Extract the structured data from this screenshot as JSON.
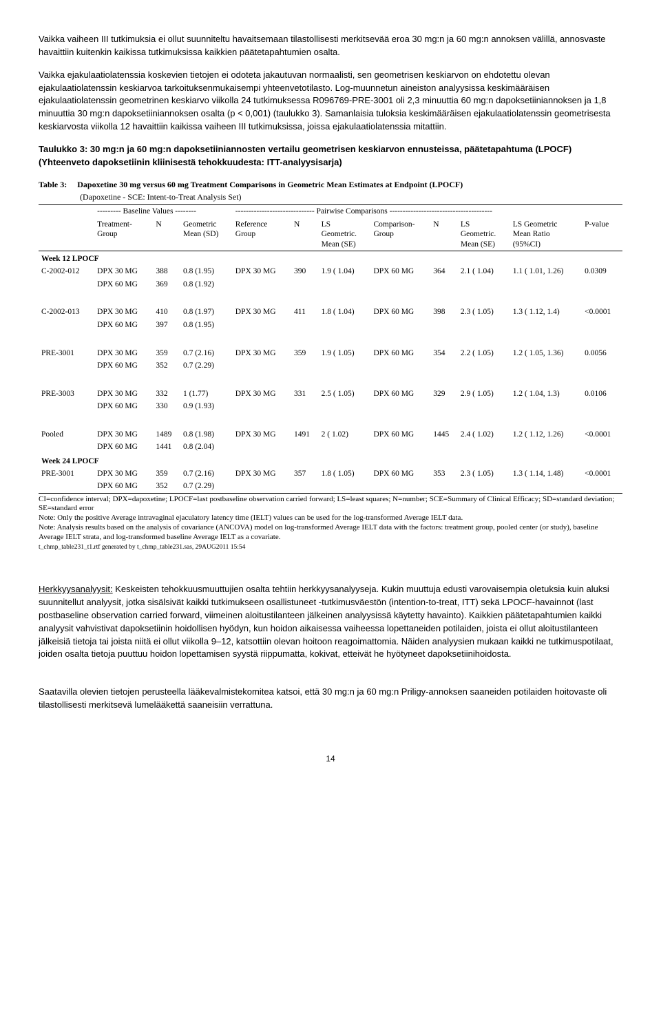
{
  "paragraphs": {
    "p1": "Vaikka vaiheen III tutkimuksia ei ollut suunniteltu havaitsemaan tilastollisesti merkitsevää eroa 30 mg:n ja 60 mg:n annoksen välillä, annosvaste havaittiin kuitenkin kaikissa tutkimuksissa kaikkien päätetapahtumien osalta.",
    "p2": "Vaikka ejakulaatiolatenssia koskevien tietojen ei odoteta jakautuvan normaalisti, sen geometrisen keskiarvon on ehdotettu olevan ejakulaatiolatenssin keskiarvoa tarkoituksenmukaisempi yhteenvetotilasto. Log-muunnetun aineiston analyysissa keskimääräisen ejakulaatiolatenssin geometrinen keskiarvo viikolla 24 tutkimuksessa R096769-PRE-3001 oli 2,3 minuuttia 60 mg:n dapoksetiiniannoksen ja 1,8 minuuttia 30 mg:n dapoksetiiniannoksen osalta (p < 0,001) (taulukko 3). Samanlaisia tuloksia keskimääräisen ejakulaatiolatenssin geometrisesta keskiarvosta viikolla 12 havaittiin kaikissa vaiheen III tutkimuksissa, joissa ejakulaatiolatenssia mitattiin.",
    "heading": "Taulukko 3: 30 mg:n ja 60 mg:n dapoksetiiniannosten vertailu geometrisen keskiarvon ennusteissa, päätetapahtuma (LPOCF) (Yhteenveto dapoksetiinin kliinisestä tehokkuudesta: ITT-analyysisarja)",
    "p3_lead": "Herkkyysanalyysit:",
    "p3_rest": " Keskeisten tehokkuusmuuttujien osalta tehtiin herkkyysanalyyseja. Kukin muuttuja edusti varovaisempia oletuksia kuin aluksi suunnitellut analyysit, jotka sisälsivät kaikki tutkimukseen osallistuneet -tutkimusväestön (intention-to-treat, ITT) sekä LPOCF-havainnot (last postbaseline observation carried forward, viimeinen aloitustilanteen jälkeinen analyysissä käytetty havainto). Kaikkien päätetapahtumien kaikki analyysit vahvistivat dapoksetiinin hoidollisen hyödyn, kun hoidon aikaisessa vaiheessa lopettaneiden potilaiden, joista ei ollut aloitustilanteen jälkeisiä tietoja tai joista niitä ei ollut viikolla 9–12, katsottiin olevan hoitoon reagoimattomia. Näiden analyysien mukaan kaikki ne tutkimuspotilaat, joiden osalta tietoja puuttuu hoidon lopettamisen syystä riippumatta, kokivat, etteivät he hyötyneet dapoksetiinihoidosta.",
    "p4": "Saatavilla olevien tietojen perusteella lääkevalmistekomitea katsoi, että 30 mg:n ja 60 mg:n Priligy-annoksen saaneiden potilaiden hoitovaste oli tilastollisesti merkitsevä lumelääkettä saaneisiin verrattuna.",
    "page_num": "14"
  },
  "table": {
    "title_label": "Table 3:",
    "title_text": "Dapoxetine 30 mg versus 60 mg Treatment Comparisons in Geometric Mean Estimates at Endpoint (LPOCF)",
    "subtitle": "(Dapoxetine - SCE: Intent-to-Treat Analysis Set)",
    "group_header_baseline": "--------- Baseline Values --------",
    "group_header_pairwise": "------------------------------ Pairwise Comparisons ---------------------------------------",
    "columns": {
      "c1": "",
      "c2": "Treatment-\nGroup",
      "c3": "N",
      "c4": "Geometric\nMean (SD)",
      "c5": "Reference\nGroup",
      "c6": "N",
      "c7": "LS\nGeometric.\nMean (SE)",
      "c8": "Comparison-\nGroup",
      "c9": "N",
      "c10": "LS\nGeometric.\nMean (SE)",
      "c11": "LS Geometric\nMean Ratio\n(95%CI)",
      "c12": "P-value"
    },
    "sections": [
      {
        "head": "Week 12 LPOCF",
        "rows": [
          [
            "C-2002-012",
            "DPX 30 MG",
            "388",
            "0.8 (1.95)",
            "DPX 30 MG",
            "390",
            "1.9 ( 1.04)",
            "DPX 60 MG",
            "364",
            "2.1 ( 1.04)",
            "1.1 ( 1.01, 1.26)",
            "0.0309"
          ],
          [
            "",
            "DPX 60 MG",
            "369",
            "0.8 (1.92)",
            "",
            "",
            "",
            "",
            "",
            "",
            "",
            ""
          ],
          [
            "",
            "",
            "",
            "",
            "",
            "",
            "",
            "",
            "",
            "",
            "",
            ""
          ],
          [
            "C-2002-013",
            "DPX 30 MG",
            "410",
            "0.8 (1.97)",
            "DPX 30 MG",
            "411",
            "1.8 ( 1.04)",
            "DPX 60 MG",
            "398",
            "2.3 ( 1.05)",
            "1.3 ( 1.12, 1.4)",
            "<0.0001"
          ],
          [
            "",
            "DPX 60 MG",
            "397",
            "0.8 (1.95)",
            "",
            "",
            "",
            "",
            "",
            "",
            "",
            ""
          ],
          [
            "",
            "",
            "",
            "",
            "",
            "",
            "",
            "",
            "",
            "",
            "",
            ""
          ],
          [
            "PRE-3001",
            "DPX 30 MG",
            "359",
            "0.7 (2.16)",
            "DPX 30 MG",
            "359",
            "1.9 ( 1.05)",
            "DPX 60 MG",
            "354",
            "2.2 ( 1.05)",
            "1.2 ( 1.05, 1.36)",
            "0.0056"
          ],
          [
            "",
            "DPX 60 MG",
            "352",
            "0.7 (2.29)",
            "",
            "",
            "",
            "",
            "",
            "",
            "",
            ""
          ],
          [
            "",
            "",
            "",
            "",
            "",
            "",
            "",
            "",
            "",
            "",
            "",
            ""
          ],
          [
            "PRE-3003",
            "DPX 30 MG",
            "332",
            "1 (1.77)",
            "DPX 30 MG",
            "331",
            "2.5 ( 1.05)",
            "DPX 60 MG",
            "329",
            "2.9 ( 1.05)",
            "1.2 ( 1.04, 1.3)",
            "0.0106"
          ],
          [
            "",
            "DPX 60 MG",
            "330",
            "0.9 (1.93)",
            "",
            "",
            "",
            "",
            "",
            "",
            "",
            ""
          ],
          [
            "",
            "",
            "",
            "",
            "",
            "",
            "",
            "",
            "",
            "",
            "",
            ""
          ],
          [
            "Pooled",
            "DPX 30 MG",
            "1489",
            "0.8 (1.98)",
            "DPX 30 MG",
            "1491",
            "2 ( 1.02)",
            "DPX 60 MG",
            "1445",
            "2.4 ( 1.02)",
            "1.2 ( 1.12, 1.26)",
            "<0.0001"
          ],
          [
            "",
            "DPX 60 MG",
            "1441",
            "0.8 (2.04)",
            "",
            "",
            "",
            "",
            "",
            "",
            "",
            ""
          ]
        ]
      },
      {
        "head": "Week 24 LPOCF",
        "rows": [
          [
            "PRE-3001",
            "DPX 30 MG",
            "359",
            "0.7 (2.16)",
            "DPX 30 MG",
            "357",
            "1.8 ( 1.05)",
            "DPX 60 MG",
            "353",
            "2.3 ( 1.05)",
            "1.3 ( 1.14, 1.48)",
            "<0.0001"
          ],
          [
            "",
            "DPX 60 MG",
            "352",
            "0.7 (2.29)",
            "",
            "",
            "",
            "",
            "",
            "",
            "",
            ""
          ]
        ]
      }
    ],
    "footnotes": [
      "CI=confidence interval; DPX=dapoxetine; LPOCF=last postbaseline observation carried forward; LS=least squares; N=number; SCE=Summary of Clinical Efficacy; SD=standard deviation; SE=standard error",
      "Note: Only the positive Average intravaginal ejaculatory latency time (IELT) values can be used for the log-transformed Average IELT data.",
      "Note: Analysis results based on the analysis of covariance (ANCOVA) model on log-transformed Average IELT data with the factors: treatment group, pooled center (or study), baseline Average IELT strata, and log-transformed baseline Average IELT as a covariate."
    ],
    "generated": "t_chmp_table231_t1.rtf generated by t_chmp_table231.sas, 29AUG2011 15:54"
  }
}
